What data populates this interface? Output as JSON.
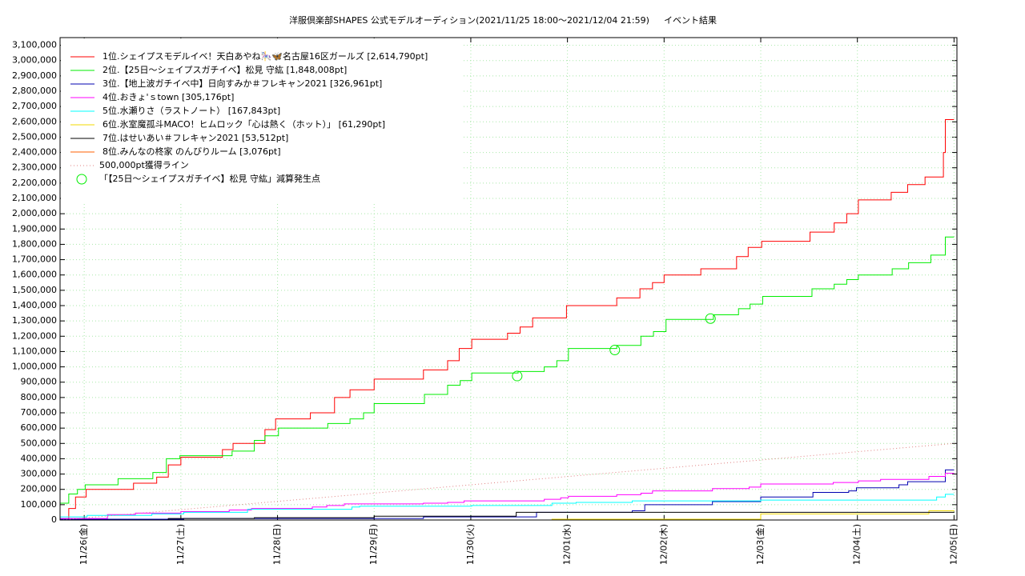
{
  "chart_data": {
    "type": "line",
    "step": true,
    "title": "洋服倶楽部SHAPES 公式モデルオーディション(2021/11/25 18:00〜2021/12/04 21:59)",
    "subtitle": "イベント結果",
    "xlim": [
      -0.25,
      9.03
    ],
    "xticks": [
      {
        "value": 0,
        "label": "11/26(金)"
      },
      {
        "value": 1,
        "label": "11/27(土)"
      },
      {
        "value": 2,
        "label": "11/28(日)"
      },
      {
        "value": 3,
        "label": "11/29(月)"
      },
      {
        "value": 4,
        "label": "11/30(火)"
      },
      {
        "value": 5,
        "label": "12/01(水)"
      },
      {
        "value": 6,
        "label": "12/02(木)"
      },
      {
        "value": 7,
        "label": "12/03(金)"
      },
      {
        "value": 8,
        "label": "12/04(土)"
      },
      {
        "value": 9,
        "label": "12/05(日)"
      }
    ],
    "ylim": [
      0,
      3150000
    ],
    "yticks": [
      0,
      {
        "value": 100000,
        "label": "100,000"
      },
      {
        "value": 200000,
        "label": "200,000"
      },
      {
        "value": 300000,
        "label": "300,000"
      },
      {
        "value": 400000,
        "label": "400,000"
      },
      {
        "value": 500000,
        "label": "500,000"
      },
      {
        "value": 600000,
        "label": "600,000"
      },
      {
        "value": 700000,
        "label": "700,000"
      },
      {
        "value": 800000,
        "label": "800,000"
      },
      {
        "value": 900000,
        "label": "900,000"
      },
      {
        "value": 1000000,
        "label": "1,000,000"
      },
      {
        "value": 1100000,
        "label": "1,100,000"
      },
      {
        "value": 1200000,
        "label": "1,200,000"
      },
      {
        "value": 1300000,
        "label": "1,300,000"
      },
      {
        "value": 1400000,
        "label": "1,400,000"
      },
      {
        "value": 1500000,
        "label": "1,500,000"
      },
      {
        "value": 1600000,
        "label": "1,600,000"
      },
      {
        "value": 1700000,
        "label": "1,700,000"
      },
      {
        "value": 1800000,
        "label": "1,800,000"
      },
      {
        "value": 1900000,
        "label": "1,900,000"
      },
      {
        "value": 2000000,
        "label": "2,000,000"
      },
      {
        "value": 2100000,
        "label": "2,100,000"
      },
      {
        "value": 2200000,
        "label": "2,200,000"
      },
      {
        "value": 2300000,
        "label": "2,300,000"
      },
      {
        "value": 2400000,
        "label": "2,400,000"
      },
      {
        "value": 2500000,
        "label": "2,500,000"
      },
      {
        "value": 2600000,
        "label": "2,600,000"
      },
      {
        "value": 2700000,
        "label": "2,700,000"
      },
      {
        "value": 2800000,
        "label": "2,800,000"
      },
      {
        "value": 2900000,
        "label": "2,900,000"
      },
      {
        "value": 3000000,
        "label": "3,000,000"
      },
      {
        "value": 3100000,
        "label": "3,100,000"
      }
    ],
    "grid": true,
    "legend": "upper left",
    "series": [
      {
        "name": "1位.シェイプスモデルイベ！天白あやね🎠🦋名古屋16区ガールズ [2,614,790pt]",
        "color": "#ff0000",
        "style": "step",
        "x": [
          -0.25,
          -0.16,
          -0.09,
          0.02,
          0.51,
          0.75,
          0.87,
          1.0,
          1.43,
          1.54,
          1.87,
          1.98,
          2.34,
          2.59,
          2.75,
          3.0,
          3.51,
          3.76,
          3.88,
          4.01,
          4.38,
          4.51,
          4.64,
          4.99,
          5.51,
          5.75,
          5.88,
          6.0,
          6.38,
          6.75,
          6.87,
          7.01,
          7.51,
          7.76,
          7.89,
          8.01,
          8.35,
          8.52,
          8.7,
          8.89,
          8.91,
          9.0
        ],
        "values": [
          0,
          75000,
          150000,
          200000,
          240000,
          280000,
          360000,
          410000,
          460000,
          500000,
          590000,
          660000,
          700000,
          800000,
          850000,
          920000,
          980000,
          1040000,
          1120000,
          1180000,
          1220000,
          1260000,
          1320000,
          1400000,
          1450000,
          1510000,
          1550000,
          1600000,
          1640000,
          1720000,
          1780000,
          1820000,
          1880000,
          1940000,
          2000000,
          2090000,
          2140000,
          2190000,
          2240000,
          2400000,
          2614790,
          2614790
        ]
      },
      {
        "name": "2位.【25日〜シェイプスガチイベ】松見 守紘 [1,848,008pt]",
        "color": "#00ee00",
        "style": "step",
        "x": [
          -0.25,
          -0.16,
          -0.07,
          0.01,
          0.35,
          0.71,
          0.85,
          0.99,
          1.53,
          1.76,
          1.87,
          2.01,
          2.52,
          2.75,
          2.89,
          3.0,
          3.52,
          3.76,
          3.89,
          4.01,
          4.49,
          4.76,
          4.89,
          5.01,
          5.51,
          5.76,
          5.89,
          6.02,
          6.51,
          6.77,
          6.89,
          7.02,
          7.53,
          7.76,
          7.89,
          8.01,
          8.36,
          8.53,
          8.76,
          8.91,
          9.0
        ],
        "values": [
          110000,
          170000,
          200000,
          230000,
          270000,
          310000,
          400000,
          420000,
          450000,
          520000,
          550000,
          600000,
          630000,
          660000,
          700000,
          760000,
          820000,
          880000,
          910000,
          960000,
          970000,
          1000000,
          1040000,
          1120000,
          1140000,
          1200000,
          1230000,
          1310000,
          1340000,
          1380000,
          1410000,
          1460000,
          1510000,
          1540000,
          1570000,
          1600000,
          1640000,
          1680000,
          1730000,
          1848008,
          1848008
        ]
      },
      {
        "name": "3位.【地上波ガチイベ中】日向すみか＃フレキャン2021 [326,961pt]",
        "color": "#0000b0",
        "style": "step",
        "x": [
          -0.25,
          1.03,
          3.51,
          4.68,
          5.67,
          5.8,
          6.5,
          7.0,
          7.54,
          7.91,
          7.99,
          8.43,
          8.52,
          8.91,
          9.0
        ],
        "values": [
          5000,
          10000,
          20000,
          50000,
          60000,
          100000,
          120000,
          150000,
          180000,
          190000,
          210000,
          230000,
          250000,
          326961,
          326961
        ]
      },
      {
        "name": "4位.おきょ'ｓtown [305,176pt]",
        "color": "#ff00ff",
        "style": "step",
        "x": [
          -0.25,
          0.24,
          0.53,
          1.0,
          1.5,
          1.73,
          2.36,
          2.51,
          2.69,
          3.51,
          3.76,
          3.93,
          4.76,
          4.93,
          5.01,
          5.51,
          5.76,
          5.88,
          6.5,
          6.88,
          7.0,
          7.75,
          8.01,
          8.24,
          8.74,
          8.91,
          9.0
        ],
        "values": [
          10000,
          35000,
          45000,
          55000,
          65000,
          75000,
          85000,
          95000,
          105000,
          110000,
          115000,
          125000,
          135000,
          145000,
          155000,
          165000,
          175000,
          190000,
          205000,
          215000,
          235000,
          245000,
          255000,
          265000,
          285000,
          305176,
          305176
        ]
      },
      {
        "name": "5位.水瀬りさ（ラストノート） [167,843pt]",
        "color": "#00ffff",
        "style": "step",
        "x": [
          -0.25,
          0.03,
          0.7,
          1.03,
          1.69,
          2.77,
          2.85,
          4.01,
          4.84,
          5.09,
          5.67,
          7.0,
          8.82,
          8.91,
          9.0
        ],
        "values": [
          20000,
          30000,
          40000,
          50000,
          70000,
          85000,
          90000,
          95000,
          110000,
          115000,
          125000,
          130000,
          150000,
          167843,
          167843
        ]
      },
      {
        "name": "6位.氷室魔孤斗MACO！ヒムロック「心は熱く（ホット）」 [61,290pt]",
        "color": "#f0d800",
        "style": "step",
        "x": [
          -0.25,
          4.84,
          7.0,
          8.74,
          9.0
        ],
        "values": [
          0,
          5000,
          40000,
          60000,
          61290
        ]
      },
      {
        "name": "7位.はせいあい＃フレキャン2021 [53,512pt]",
        "color": "#000000",
        "style": "step",
        "x": [
          -0.25,
          0.87,
          1.76,
          3.0,
          4.47,
          9.0
        ],
        "values": [
          0,
          10000,
          15000,
          25000,
          50000,
          53512
        ]
      },
      {
        "name": "8位.みんなの柊家 のんびりルーム [3,076pt]",
        "color": "#ff6000",
        "style": "step",
        "x": [
          -0.25,
          9.0
        ],
        "values": [
          0,
          3076
        ]
      },
      {
        "name": "500,000pt獲得ライン",
        "color": "#e08080",
        "style": "dotted",
        "x": [
          -0.25,
          9.0
        ],
        "values": [
          0,
          500000
        ]
      },
      {
        "name": "「【25日〜シェイプスガチイベ】松見 守紘」減算発生点",
        "color": "#00ee00",
        "style": "marker",
        "x": [
          4.48,
          5.49,
          6.48
        ],
        "values": [
          940000,
          1110000,
          1315000
        ]
      }
    ]
  }
}
